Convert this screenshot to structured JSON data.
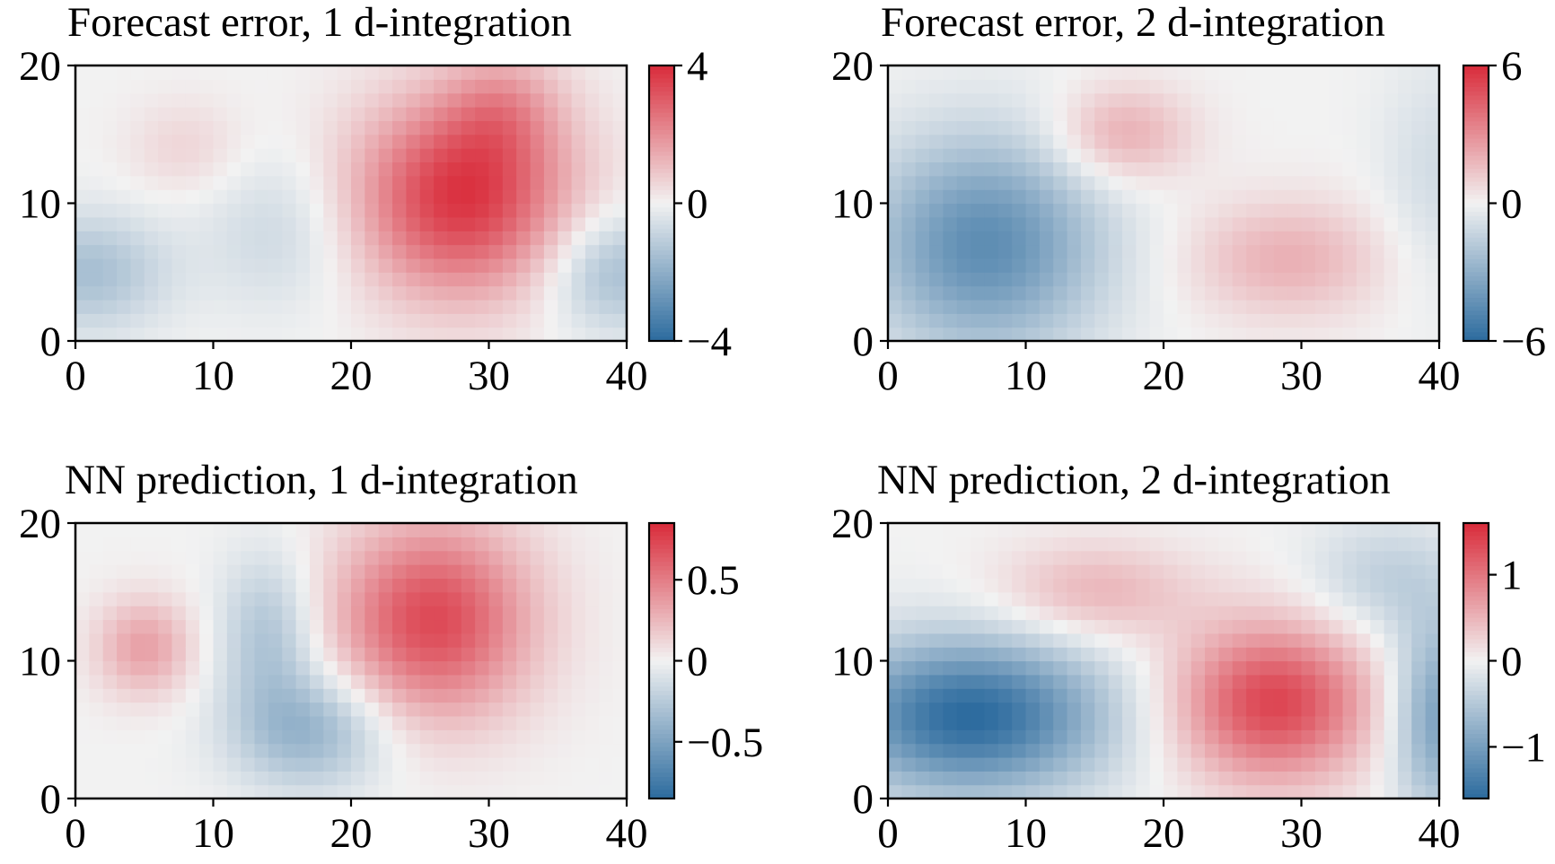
{
  "figure": {
    "colormap": {
      "negative": "#2c6b9e",
      "zero": "#f2f2f2",
      "positive": "#d92b3a"
    }
  },
  "chart_data": [
    {
      "type": "heatmap",
      "title": "Forecast error, 1 d-integration",
      "xlim": [
        0,
        40
      ],
      "ylim": [
        0,
        20
      ],
      "xticks": [
        "0",
        "10",
        "20",
        "30",
        "40"
      ],
      "yticks": [
        "0",
        "10",
        "20"
      ],
      "colorbar": {
        "range": [
          -4,
          4
        ],
        "ticks": [
          {
            "value": 4,
            "label": "4"
          },
          {
            "value": 0,
            "label": "0"
          },
          {
            "value": -4,
            "label": "−4"
          }
        ]
      },
      "features": [
        {
          "x": 28,
          "y": 10.5,
          "amplitude": 3.8,
          "sx": 5.5,
          "sy": 5
        },
        {
          "x": 31,
          "y": 17,
          "amplitude": 1.2,
          "sx": 3,
          "sy": 3
        },
        {
          "x": 8,
          "y": 14,
          "amplitude": 0.6,
          "sx": 3,
          "sy": 2.5
        },
        {
          "x": 1,
          "y": 5,
          "amplitude": -1.5,
          "sx": 4,
          "sy": 3
        },
        {
          "x": 15,
          "y": 8,
          "amplitude": -0.8,
          "sx": 4,
          "sy": 4
        },
        {
          "x": 39,
          "y": 5,
          "amplitude": -1.6,
          "sx": 3.5,
          "sy": 3
        }
      ]
    },
    {
      "type": "heatmap",
      "title": "Forecast error, 2 d-integration",
      "xlim": [
        0,
        40
      ],
      "ylim": [
        0,
        20
      ],
      "xticks": [
        "0",
        "10",
        "20",
        "30",
        "40"
      ],
      "yticks": [
        "0",
        "10",
        "20"
      ],
      "colorbar": {
        "range": [
          -6,
          6
        ],
        "ticks": [
          {
            "value": 6,
            "label": "6"
          },
          {
            "value": 0,
            "label": "0"
          },
          {
            "value": -6,
            "label": "−6"
          }
        ]
      },
      "features": [
        {
          "x": 7,
          "y": 7,
          "amplitude": -4.5,
          "sx": 6,
          "sy": 5.5
        },
        {
          "x": 17,
          "y": 15,
          "amplitude": 2.2,
          "sx": 3.5,
          "sy": 2.5
        },
        {
          "x": 29,
          "y": 6,
          "amplitude": 2.0,
          "sx": 5,
          "sy": 3
        },
        {
          "x": 40,
          "y": 12,
          "amplitude": -1.0,
          "sx": 3,
          "sy": 6
        }
      ]
    },
    {
      "type": "heatmap",
      "title": "NN prediction, 1 d-integration",
      "xlim": [
        0,
        40
      ],
      "ylim": [
        0,
        20
      ],
      "xticks": [
        "0",
        "10",
        "20",
        "30",
        "40"
      ],
      "yticks": [
        "0",
        "10",
        "20"
      ],
      "colorbar": {
        "range": [
          -0.85,
          0.85
        ],
        "ticks": [
          {
            "value": 0.5,
            "label": "0.5"
          },
          {
            "value": 0,
            "label": "0"
          },
          {
            "value": -0.5,
            "label": "−0.5"
          }
        ]
      },
      "features": [
        {
          "x": 26,
          "y": 13,
          "amplitude": 0.72,
          "sx": 5,
          "sy": 5
        },
        {
          "x": 5,
          "y": 11,
          "amplitude": 0.35,
          "sx": 2.5,
          "sy": 2.5
        },
        {
          "x": 14,
          "y": 12,
          "amplitude": -0.3,
          "sx": 2.5,
          "sy": 4
        },
        {
          "x": 17,
          "y": 5,
          "amplitude": -0.4,
          "sx": 4,
          "sy": 3
        }
      ]
    },
    {
      "type": "heatmap",
      "title": "NN prediction, 2 d-integration",
      "xlim": [
        0,
        40
      ],
      "ylim": [
        0,
        20
      ],
      "xticks": [
        "0",
        "10",
        "20",
        "30",
        "40"
      ],
      "yticks": [
        "0",
        "10",
        "20"
      ],
      "colorbar": {
        "range": [
          -1.6,
          1.6
        ],
        "ticks": [
          {
            "value": 1,
            "label": "1"
          },
          {
            "value": 0,
            "label": "0"
          },
          {
            "value": -1,
            "label": "−1"
          }
        ]
      },
      "features": [
        {
          "x": 6,
          "y": 6,
          "amplitude": -1.6,
          "sx": 7,
          "sy": 4
        },
        {
          "x": 28,
          "y": 7,
          "amplitude": 1.4,
          "sx": 5,
          "sy": 4
        },
        {
          "x": 15,
          "y": 15,
          "amplitude": 0.5,
          "sx": 5,
          "sy": 2.5
        },
        {
          "x": 40,
          "y": 6,
          "amplitude": -1.0,
          "sx": 2.5,
          "sy": 5
        },
        {
          "x": 36,
          "y": 16,
          "amplitude": -0.4,
          "sx": 4,
          "sy": 3
        }
      ]
    }
  ]
}
